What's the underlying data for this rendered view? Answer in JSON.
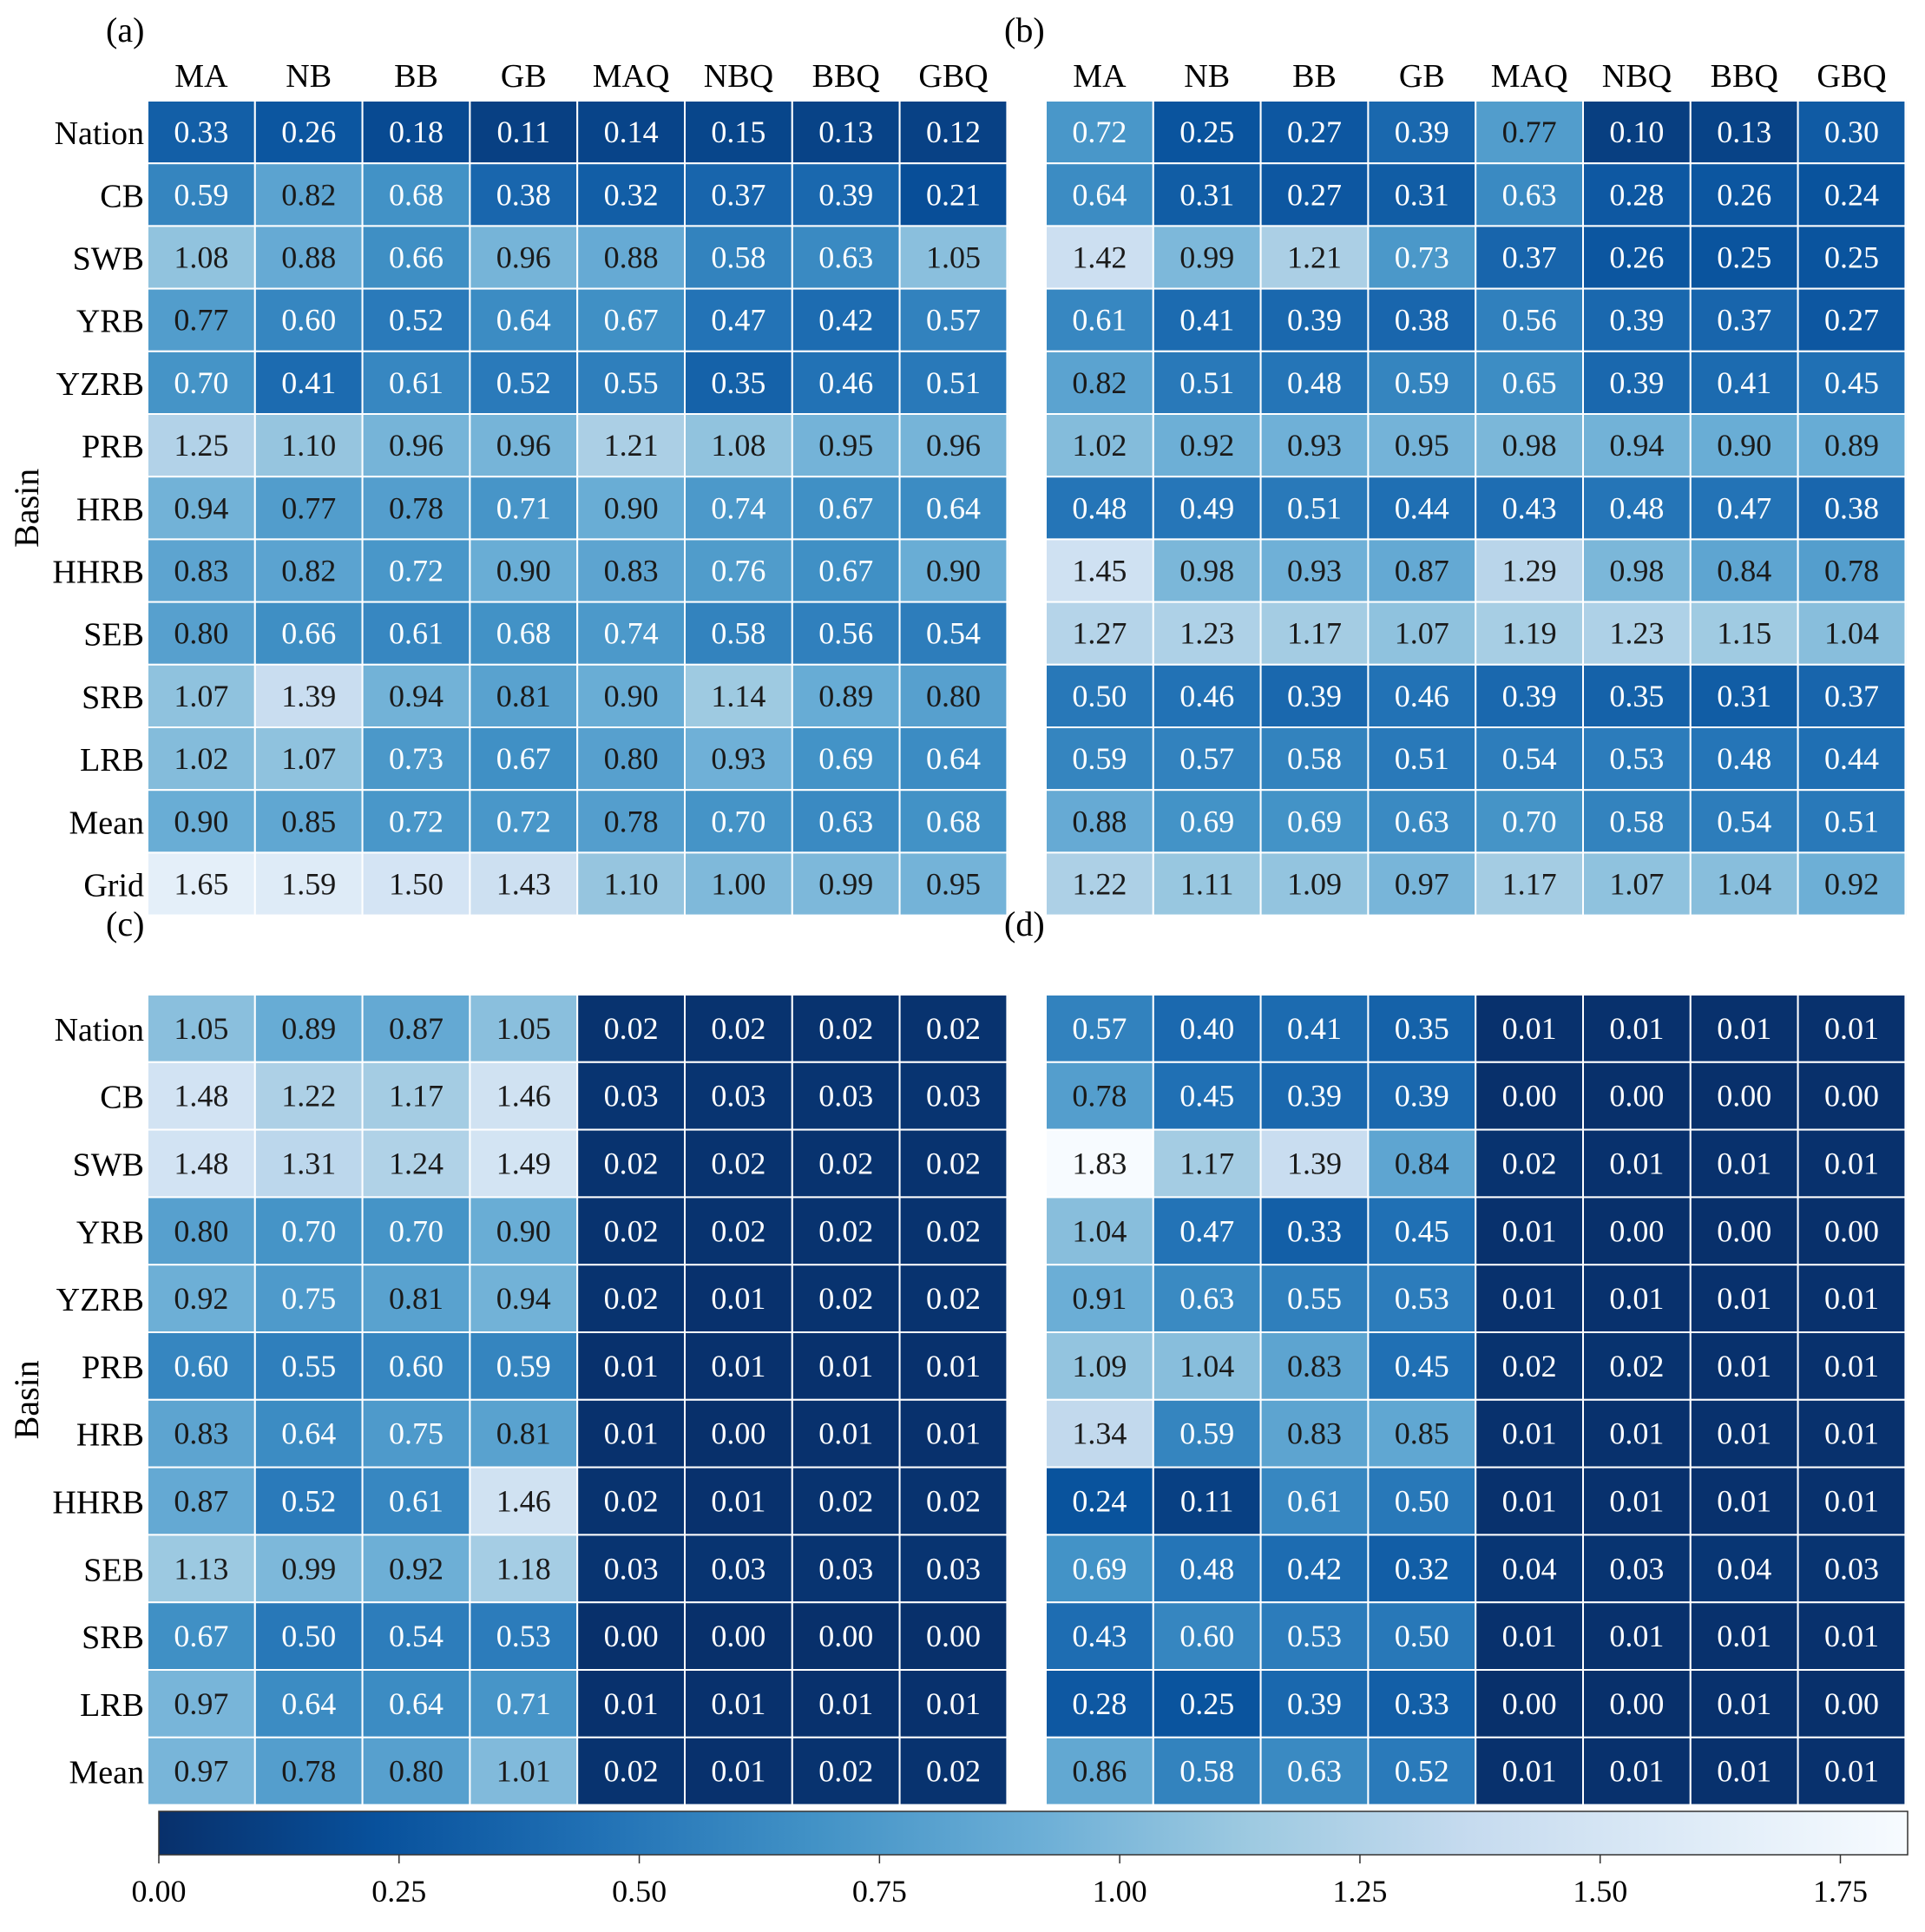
{
  "chart_data": {
    "type": "heatmap",
    "columns": [
      "MA",
      "NB",
      "BB",
      "GB",
      "MAQ",
      "NBQ",
      "BBQ",
      "GBQ"
    ],
    "ylabel": "Basin",
    "colorbar": {
      "range": [
        0,
        1.82
      ],
      "ticks": [
        "0.00",
        "0.25",
        "0.50",
        "0.75",
        "1.00",
        "1.25",
        "1.50",
        "1.75"
      ],
      "colors": [
        "#08306b",
        "#08519c",
        "#2171b5",
        "#4292c6",
        "#6baed6",
        "#9ecae1",
        "#c6dbef",
        "#deebf7",
        "#f7fbff"
      ]
    },
    "panels": [
      {
        "label": "(a)",
        "rows": [
          "Nation",
          "CB",
          "SWB",
          "YRB",
          "YZRB",
          "PRB",
          "HRB",
          "HHRB",
          "SEB",
          "SRB",
          "LRB",
          "Mean",
          "Grid"
        ],
        "values": [
          [
            "0.33",
            "0.26",
            "0.18",
            "0.11",
            "0.14",
            "0.15",
            "0.13",
            "0.12"
          ],
          [
            "0.59",
            "0.82",
            "0.68",
            "0.38",
            "0.32",
            "0.37",
            "0.39",
            "0.21"
          ],
          [
            "1.08",
            "0.88",
            "0.66",
            "0.96",
            "0.88",
            "0.58",
            "0.63",
            "1.05"
          ],
          [
            "0.77",
            "0.60",
            "0.52",
            "0.64",
            "0.67",
            "0.47",
            "0.42",
            "0.57"
          ],
          [
            "0.70",
            "0.41",
            "0.61",
            "0.52",
            "0.55",
            "0.35",
            "0.46",
            "0.51"
          ],
          [
            "1.25",
            "1.10",
            "0.96",
            "0.96",
            "1.21",
            "1.08",
            "0.95",
            "0.96"
          ],
          [
            "0.94",
            "0.77",
            "0.78",
            "0.71",
            "0.90",
            "0.74",
            "0.67",
            "0.64"
          ],
          [
            "0.83",
            "0.82",
            "0.72",
            "0.90",
            "0.83",
            "0.76",
            "0.67",
            "0.90"
          ],
          [
            "0.80",
            "0.66",
            "0.61",
            "0.68",
            "0.74",
            "0.58",
            "0.56",
            "0.54"
          ],
          [
            "1.07",
            "1.39",
            "0.94",
            "0.81",
            "0.90",
            "1.14",
            "0.89",
            "0.80"
          ],
          [
            "1.02",
            "1.07",
            "0.73",
            "0.67",
            "0.80",
            "0.93",
            "0.69",
            "0.64"
          ],
          [
            "0.90",
            "0.85",
            "0.72",
            "0.72",
            "0.78",
            "0.70",
            "0.63",
            "0.68"
          ],
          [
            "1.65",
            "1.59",
            "1.50",
            "1.43",
            "1.10",
            "1.00",
            "0.99",
            "0.95"
          ]
        ]
      },
      {
        "label": "(b)",
        "rows": [
          "Nation",
          "CB",
          "SWB",
          "YRB",
          "YZRB",
          "PRB",
          "HRB",
          "HHRB",
          "SEB",
          "SRB",
          "LRB",
          "Mean",
          "Grid"
        ],
        "values": [
          [
            "0.72",
            "0.25",
            "0.27",
            "0.39",
            "0.77",
            "0.10",
            "0.13",
            "0.30"
          ],
          [
            "0.64",
            "0.31",
            "0.27",
            "0.31",
            "0.63",
            "0.28",
            "0.26",
            "0.24"
          ],
          [
            "1.42",
            "0.99",
            "1.21",
            "0.73",
            "0.37",
            "0.26",
            "0.25",
            "0.25"
          ],
          [
            "0.61",
            "0.41",
            "0.39",
            "0.38",
            "0.56",
            "0.39",
            "0.37",
            "0.27"
          ],
          [
            "0.82",
            "0.51",
            "0.48",
            "0.59",
            "0.65",
            "0.39",
            "0.41",
            "0.45"
          ],
          [
            "1.02",
            "0.92",
            "0.93",
            "0.95",
            "0.98",
            "0.94",
            "0.90",
            "0.89"
          ],
          [
            "0.48",
            "0.49",
            "0.51",
            "0.44",
            "0.43",
            "0.48",
            "0.47",
            "0.38"
          ],
          [
            "1.45",
            "0.98",
            "0.93",
            "0.87",
            "1.29",
            "0.98",
            "0.84",
            "0.78"
          ],
          [
            "1.27",
            "1.23",
            "1.17",
            "1.07",
            "1.19",
            "1.23",
            "1.15",
            "1.04"
          ],
          [
            "0.50",
            "0.46",
            "0.39",
            "0.46",
            "0.39",
            "0.35",
            "0.31",
            "0.37"
          ],
          [
            "0.59",
            "0.57",
            "0.58",
            "0.51",
            "0.54",
            "0.53",
            "0.48",
            "0.44"
          ],
          [
            "0.88",
            "0.69",
            "0.69",
            "0.63",
            "0.70",
            "0.58",
            "0.54",
            "0.51"
          ],
          [
            "1.22",
            "1.11",
            "1.09",
            "0.97",
            "1.17",
            "1.07",
            "1.04",
            "0.92"
          ]
        ]
      },
      {
        "label": "(c)",
        "rows": [
          "Nation",
          "CB",
          "SWB",
          "YRB",
          "YZRB",
          "PRB",
          "HRB",
          "HHRB",
          "SEB",
          "SRB",
          "LRB",
          "Mean"
        ],
        "values": [
          [
            "1.05",
            "0.89",
            "0.87",
            "1.05",
            "0.02",
            "0.02",
            "0.02",
            "0.02"
          ],
          [
            "1.48",
            "1.22",
            "1.17",
            "1.46",
            "0.03",
            "0.03",
            "0.03",
            "0.03"
          ],
          [
            "1.48",
            "1.31",
            "1.24",
            "1.49",
            "0.02",
            "0.02",
            "0.02",
            "0.02"
          ],
          [
            "0.80",
            "0.70",
            "0.70",
            "0.90",
            "0.02",
            "0.02",
            "0.02",
            "0.02"
          ],
          [
            "0.92",
            "0.75",
            "0.81",
            "0.94",
            "0.02",
            "0.01",
            "0.02",
            "0.02"
          ],
          [
            "0.60",
            "0.55",
            "0.60",
            "0.59",
            "0.01",
            "0.01",
            "0.01",
            "0.01"
          ],
          [
            "0.83",
            "0.64",
            "0.75",
            "0.81",
            "0.01",
            "0.00",
            "0.01",
            "0.01"
          ],
          [
            "0.87",
            "0.52",
            "0.61",
            "1.46",
            "0.02",
            "0.01",
            "0.02",
            "0.02"
          ],
          [
            "1.13",
            "0.99",
            "0.92",
            "1.18",
            "0.03",
            "0.03",
            "0.03",
            "0.03"
          ],
          [
            "0.67",
            "0.50",
            "0.54",
            "0.53",
            "0.00",
            "0.00",
            "0.00",
            "0.00"
          ],
          [
            "0.97",
            "0.64",
            "0.64",
            "0.71",
            "0.01",
            "0.01",
            "0.01",
            "0.01"
          ],
          [
            "0.97",
            "0.78",
            "0.80",
            "1.01",
            "0.02",
            "0.01",
            "0.02",
            "0.02"
          ]
        ]
      },
      {
        "label": "(d)",
        "rows": [
          "Nation",
          "CB",
          "SWB",
          "YRB",
          "YZRB",
          "PRB",
          "HRB",
          "HHRB",
          "SEB",
          "SRB",
          "LRB",
          "Mean"
        ],
        "values": [
          [
            "0.57",
            "0.40",
            "0.41",
            "0.35",
            "0.01",
            "0.01",
            "0.01",
            "0.01"
          ],
          [
            "0.78",
            "0.45",
            "0.39",
            "0.39",
            "0.00",
            "0.00",
            "0.00",
            "0.00"
          ],
          [
            "1.83",
            "1.17",
            "1.39",
            "0.84",
            "0.02",
            "0.01",
            "0.01",
            "0.01"
          ],
          [
            "1.04",
            "0.47",
            "0.33",
            "0.45",
            "0.01",
            "0.00",
            "0.00",
            "0.00"
          ],
          [
            "0.91",
            "0.63",
            "0.55",
            "0.53",
            "0.01",
            "0.01",
            "0.01",
            "0.01"
          ],
          [
            "1.09",
            "1.04",
            "0.83",
            "0.45",
            "0.02",
            "0.02",
            "0.01",
            "0.01"
          ],
          [
            "1.34",
            "0.59",
            "0.83",
            "0.85",
            "0.01",
            "0.01",
            "0.01",
            "0.01"
          ],
          [
            "0.24",
            "0.11",
            "0.61",
            "0.50",
            "0.01",
            "0.01",
            "0.01",
            "0.01"
          ],
          [
            "0.69",
            "0.48",
            "0.42",
            "0.32",
            "0.04",
            "0.03",
            "0.04",
            "0.03"
          ],
          [
            "0.43",
            "0.60",
            "0.53",
            "0.50",
            "0.01",
            "0.01",
            "0.01",
            "0.01"
          ],
          [
            "0.28",
            "0.25",
            "0.39",
            "0.33",
            "0.00",
            "0.00",
            "0.01",
            "0.00"
          ],
          [
            "0.86",
            "0.58",
            "0.63",
            "0.52",
            "0.01",
            "0.01",
            "0.01",
            "0.01"
          ]
        ]
      }
    ]
  }
}
